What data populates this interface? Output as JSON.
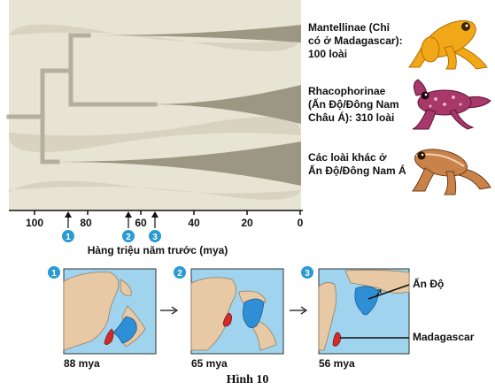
{
  "tree": {
    "axis_ticks": [
      "100",
      "80",
      "60",
      "40",
      "20",
      "0"
    ],
    "axis_label": "Hàng triệu năm trước (mya)",
    "markers": [
      "1",
      "2",
      "3"
    ],
    "clades": [
      {
        "line1": "Mantellinae (Chỉ",
        "line2": "có ở Madagascar):",
        "line3": "100 loài"
      },
      {
        "line1": "Rhacophorinae",
        "line2": "(Ấn Độ/Đông Nam",
        "line3": "Châu Á): 310 loài"
      },
      {
        "line1": "Các loài khác ở",
        "line2": "Ấn Độ/Đông Nam Á",
        "line3": ""
      }
    ],
    "colors": {
      "panel": "#e8e4d4",
      "branch": "#b3b09f",
      "wedge": "#9b9782",
      "marker": "#2a9bd2"
    }
  },
  "maps": [
    {
      "number": "1",
      "caption": "88 mya"
    },
    {
      "number": "2",
      "caption": "65 mya"
    },
    {
      "number": "3",
      "caption": "56 mya"
    }
  ],
  "map_labels": {
    "india": "Ấn Độ",
    "madagascar": "Madagascar"
  },
  "map_colors": {
    "ocean": "#9fd3ee",
    "land": "#e7c9a6",
    "india": "#2f8fd6",
    "madagascar": "#d42a2a"
  },
  "figure_title": "Hình 10"
}
